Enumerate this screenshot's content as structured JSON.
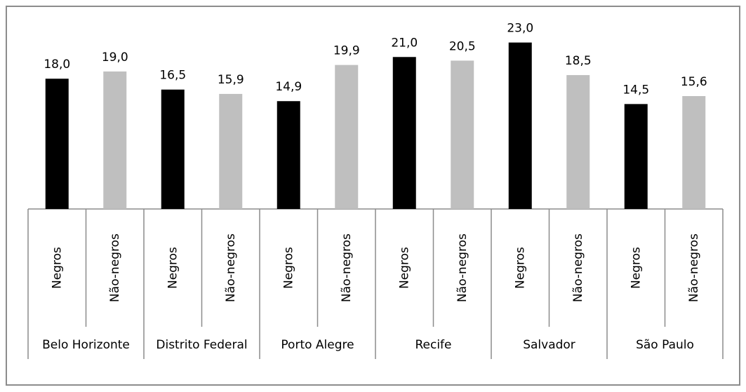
{
  "chart_data": {
    "type": "bar",
    "categories": [
      "Belo Horizonte",
      "Distrito Federal",
      "Porto Alegre",
      "Recife",
      "Salvador",
      "São Paulo"
    ],
    "series": [
      {
        "name": "Negros",
        "color": "#000000",
        "values": [
          18.0,
          16.5,
          14.9,
          21.0,
          23.0,
          14.5
        ],
        "value_labels": [
          "18,0",
          "16,5",
          "14,9",
          "21,0",
          "23,0",
          "14,5"
        ]
      },
      {
        "name": "Não-negros",
        "color": "#bfbfbf",
        "values": [
          19.0,
          15.9,
          19.9,
          20.5,
          18.5,
          15.6
        ],
        "value_labels": [
          "19,0",
          "15,9",
          "19,9",
          "20,5",
          "18,5",
          "15,6"
        ]
      }
    ],
    "ylim": [
      0,
      25
    ]
  }
}
